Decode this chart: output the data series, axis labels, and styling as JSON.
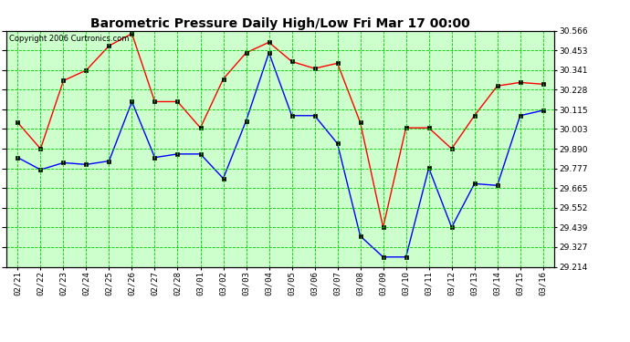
{
  "title": "Barometric Pressure Daily High/Low Fri Mar 17 00:00",
  "copyright": "Copyright 2006 Curtronics.com",
  "dates": [
    "02/21",
    "02/22",
    "02/23",
    "02/24",
    "02/25",
    "02/26",
    "02/27",
    "02/28",
    "03/01",
    "03/02",
    "03/03",
    "03/04",
    "03/05",
    "03/06",
    "03/07",
    "03/08",
    "03/09",
    "03/10",
    "03/11",
    "03/12",
    "03/13",
    "03/14",
    "03/15",
    "03/16"
  ],
  "high": [
    30.04,
    29.89,
    30.28,
    30.34,
    30.48,
    30.55,
    30.16,
    30.16,
    30.01,
    30.29,
    30.44,
    30.5,
    30.39,
    30.35,
    30.38,
    30.04,
    29.44,
    30.01,
    30.01,
    29.89,
    30.08,
    30.25,
    30.27,
    30.26
  ],
  "low": [
    29.84,
    29.77,
    29.81,
    29.8,
    29.82,
    30.16,
    29.84,
    29.86,
    29.86,
    29.72,
    30.05,
    30.44,
    30.08,
    30.08,
    29.92,
    29.39,
    29.27,
    29.27,
    29.78,
    29.44,
    29.69,
    29.68,
    30.08,
    30.11
  ],
  "ylim_min": 29.214,
  "ylim_max": 30.566,
  "yticks": [
    29.214,
    29.327,
    29.439,
    29.552,
    29.665,
    29.777,
    29.89,
    30.003,
    30.115,
    30.228,
    30.341,
    30.453,
    30.566
  ],
  "bg_color": "#ccffcc",
  "grid_color": "#00cc00",
  "high_color": "red",
  "low_color": "blue",
  "title_fontsize": 10,
  "axis_fontsize": 6.5,
  "copyright_fontsize": 6
}
